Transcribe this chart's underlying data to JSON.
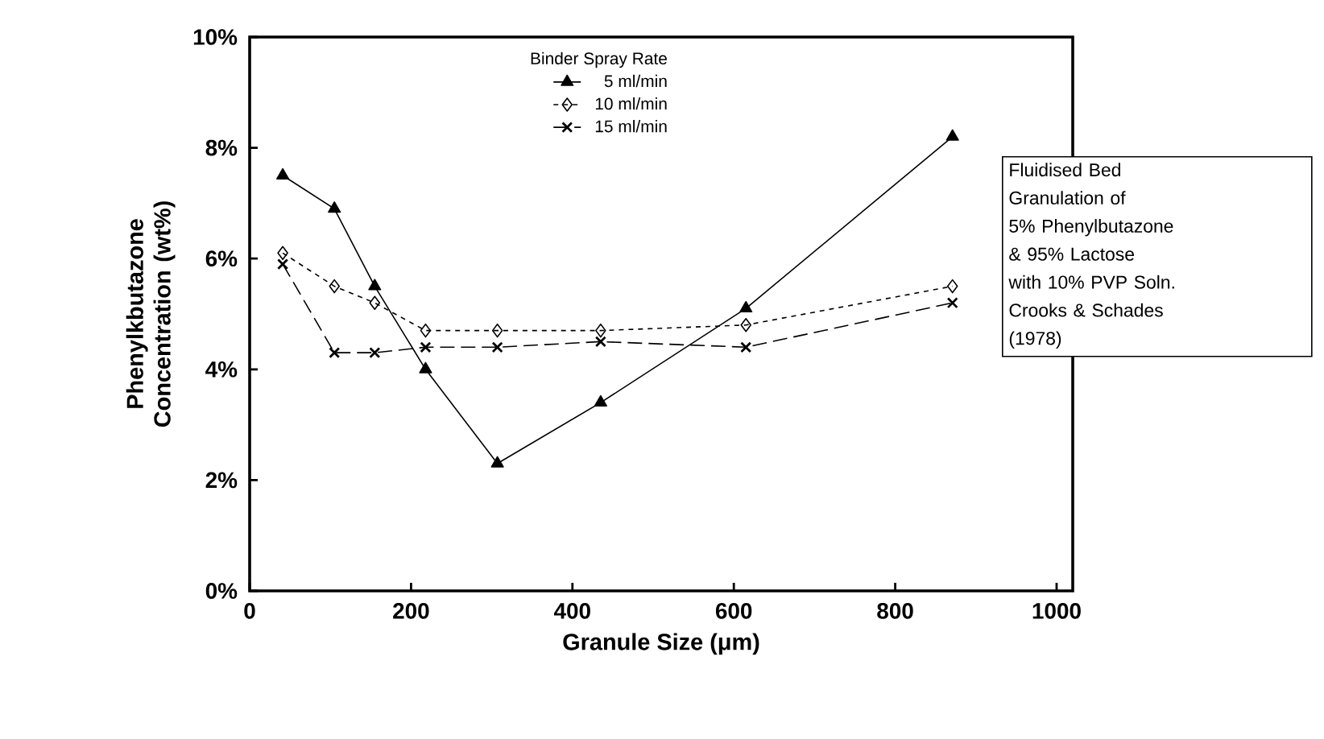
{
  "chart_data": {
    "type": "line",
    "xlabel": "Granule Size (μm)",
    "ylabel": "Phenylkbutazone Concentration (wt%)",
    "legend_title": "Binder Spray Rate",
    "legend": "top",
    "x": [
      41,
      105,
      155,
      218,
      307,
      435,
      615,
      871
    ],
    "xlim": [
      0,
      1020
    ],
    "xticks": [
      0,
      200,
      400,
      600,
      800,
      1000
    ],
    "ylim": [
      0,
      10
    ],
    "yticks": [
      {
        "value": 0,
        "label": "0%"
      },
      {
        "value": 2,
        "label": "2%"
      },
      {
        "value": 4,
        "label": "4%"
      },
      {
        "value": 6,
        "label": "6%"
      },
      {
        "value": 8,
        "label": "8%"
      },
      {
        "value": 10,
        "label": "10%"
      }
    ],
    "grid": false,
    "series": [
      {
        "name": "5 ml/min",
        "color": "#000000",
        "marker": "triangle",
        "line_style": "solid",
        "values": [
          7.5,
          6.9,
          5.5,
          4.0,
          2.3,
          3.4,
          5.1,
          8.2
        ]
      },
      {
        "name": "10 ml/min",
        "color": "#000000",
        "marker": "diamond",
        "line_style": "dotted",
        "values": [
          6.1,
          5.5,
          5.2,
          4.7,
          4.7,
          4.7,
          4.8,
          5.5
        ]
      },
      {
        "name": "15 ml/min",
        "color": "#000000",
        "marker": "cross",
        "line_style": "dashed",
        "values": [
          5.9,
          4.3,
          4.3,
          4.4,
          4.4,
          4.5,
          4.4,
          5.2
        ]
      }
    ],
    "annotations": [
      "Fluidised Bed",
      "Granulation of",
      "5% Phenylbutazone",
      "& 95% Lactose",
      "with 10% PVP Soln.",
      "Crooks & Schades",
      "(1978)"
    ]
  }
}
